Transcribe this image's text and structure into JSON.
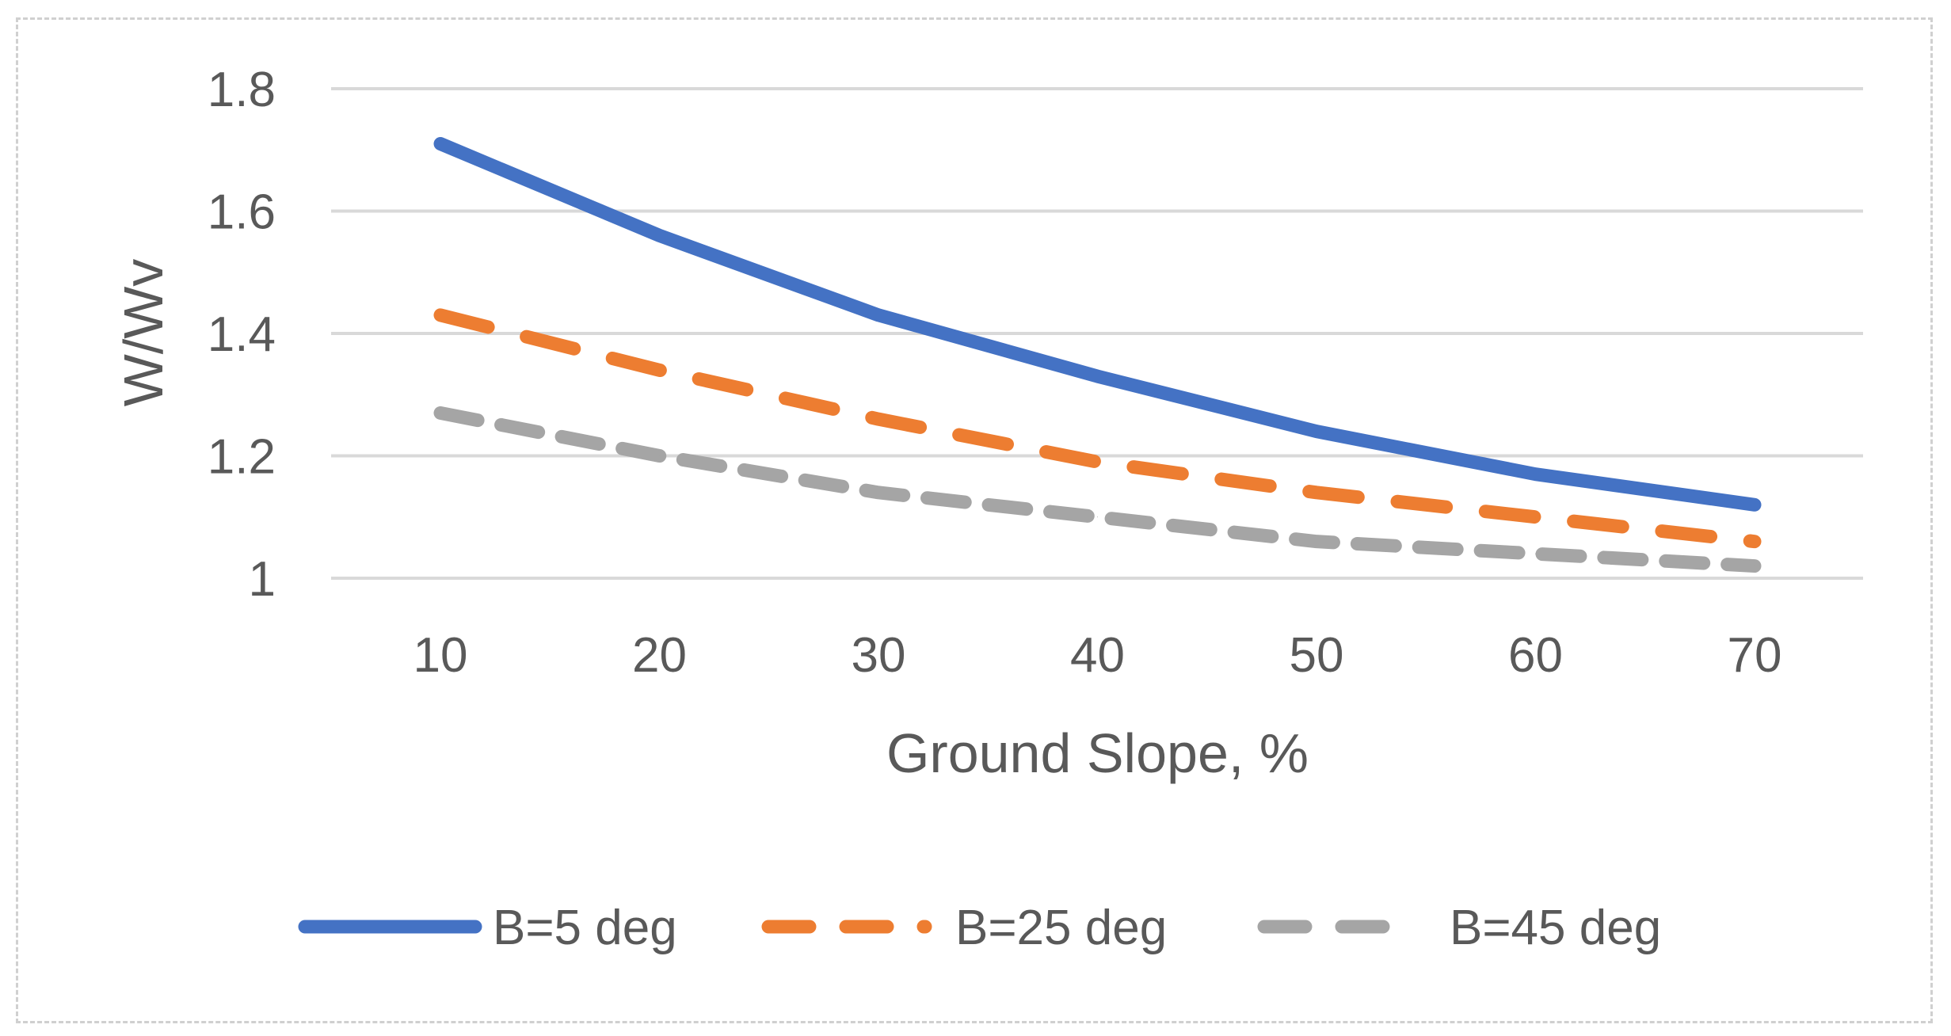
{
  "chart_data": {
    "type": "line",
    "title": "",
    "xlabel": "Ground Slope, %",
    "ylabel": "W/Wv",
    "x": [
      10,
      20,
      30,
      40,
      50,
      60,
      70
    ],
    "x_tick_labels": [
      "10",
      "20",
      "30",
      "40",
      "50",
      "60",
      "70"
    ],
    "y_tick_labels": [
      "1",
      "1.2",
      "1.4",
      "1.6",
      "1.8"
    ],
    "y_ticks": [
      1,
      1.2,
      1.4,
      1.6,
      1.8
    ],
    "ylim": [
      1,
      1.8
    ],
    "grid": "horizontal",
    "legend_position": "bottom",
    "series": [
      {
        "name": "B=5 deg",
        "color": "#4472C4",
        "style": "solid",
        "values": [
          1.71,
          1.56,
          1.43,
          1.33,
          1.24,
          1.17,
          1.12
        ]
      },
      {
        "name": "B=25 deg",
        "color": "#ED7D31",
        "style": "dashed",
        "values": [
          1.43,
          1.34,
          1.26,
          1.19,
          1.14,
          1.1,
          1.06
        ]
      },
      {
        "name": "B=45 deg",
        "color": "#A5A5A5",
        "style": "dashed",
        "values": [
          1.27,
          1.2,
          1.14,
          1.1,
          1.06,
          1.04,
          1.02
        ]
      }
    ]
  }
}
